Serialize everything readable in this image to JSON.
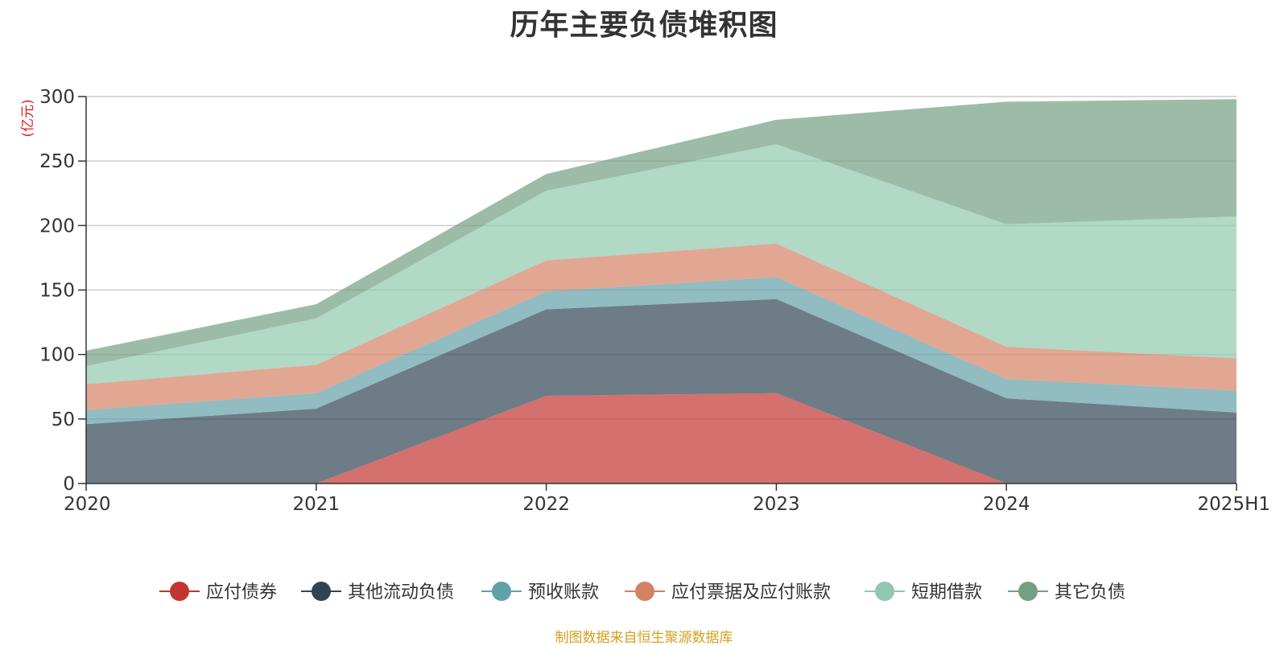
{
  "title": "历年主要负债堆积图",
  "source_note": "制图数据来自恒生聚源数据库",
  "chart_data": {
    "type": "area",
    "stacked": true,
    "title": "历年主要负债堆积图",
    "ylabel": "(亿元)",
    "ylim": [
      0,
      300
    ],
    "yticks": [
      0,
      50,
      100,
      150,
      200,
      250,
      300
    ],
    "grid": true,
    "legend_position": "bottom",
    "categories": [
      "2020",
      "2021",
      "2022",
      "2023",
      "2024",
      "2025H1"
    ],
    "series": [
      {
        "name": "应付债券",
        "color": "#c23531",
        "values": [
          0,
          0,
          68,
          70,
          0,
          0
        ]
      },
      {
        "name": "其他流动负债",
        "color": "#2f4554",
        "values": [
          46,
          58,
          67,
          73,
          66,
          55
        ]
      },
      {
        "name": "预收账款",
        "color": "#61a0a8",
        "values": [
          11,
          12,
          14,
          17,
          15,
          17
        ]
      },
      {
        "name": "应付票据及应付账款",
        "color": "#d48265",
        "values": [
          20,
          22,
          24,
          26,
          25,
          25
        ]
      },
      {
        "name": "短期借款",
        "color": "#91c7ae",
        "values": [
          14,
          36,
          54,
          77,
          95,
          110
        ]
      },
      {
        "name": "其它负债",
        "color": "#749f83",
        "values": [
          12,
          11,
          13,
          19,
          95,
          91
        ]
      }
    ]
  }
}
